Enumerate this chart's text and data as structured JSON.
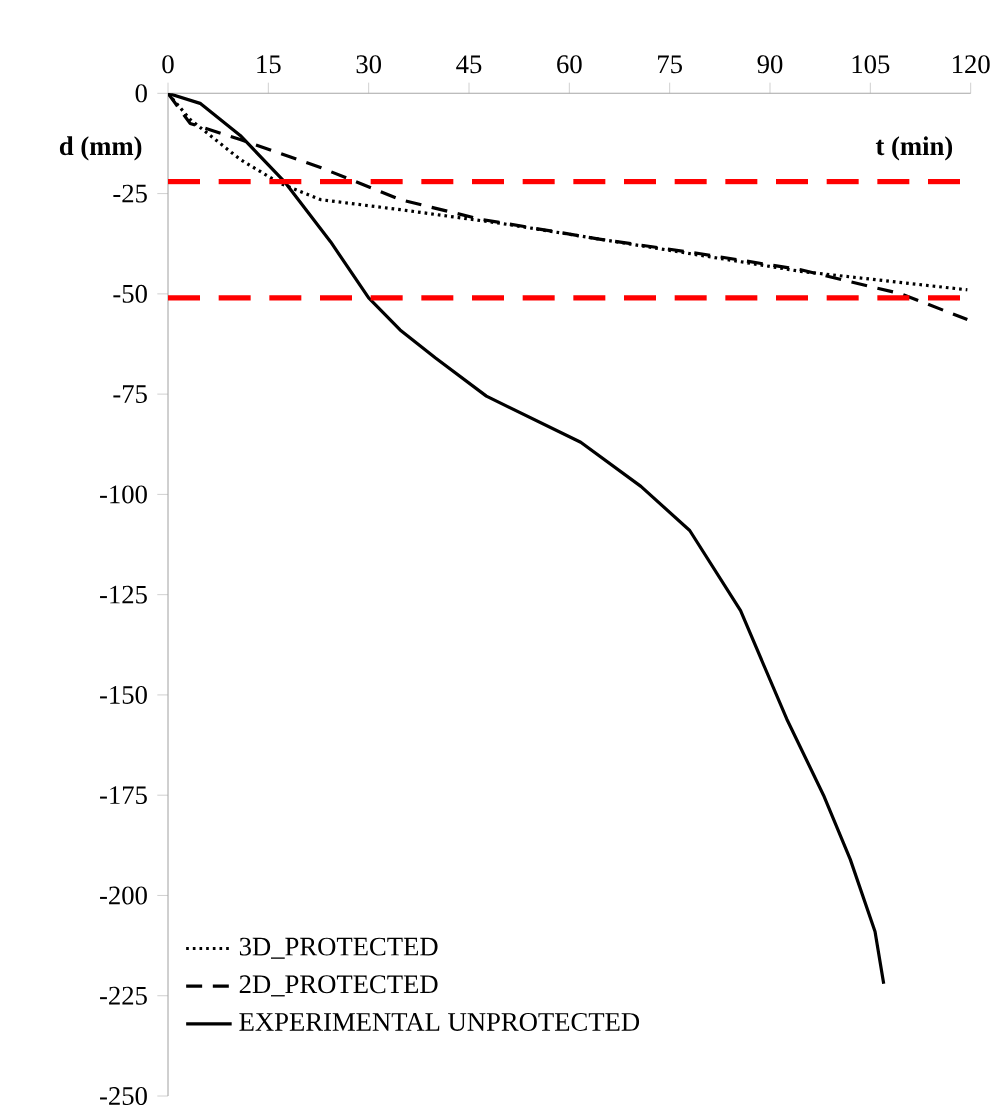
{
  "chart_data": {
    "type": "line",
    "xlabel": "t (min)",
    "ylabel": "d (mm)",
    "xlim": [
      0,
      120
    ],
    "xticks": [
      0,
      15,
      30,
      45,
      60,
      75,
      90,
      105,
      120
    ],
    "ylim": [
      -250,
      0
    ],
    "yticks": [
      -250,
      -225,
      -200,
      -175,
      -150,
      -125,
      -100,
      -75,
      -50,
      -25,
      0
    ],
    "grid": false,
    "legend": "bottom left",
    "series": [
      {
        "name": "3D_PROTECTED",
        "color": "#000000",
        "line_style": "dotted",
        "x": [
          0,
          3.3,
          10.8,
          16.8,
          22.8,
          34.7,
          49.7,
          64.7,
          94.6,
          119.5
        ],
        "values": [
          0,
          -6.5,
          -16.5,
          -22.5,
          -26.5,
          -29,
          -32.4,
          -36.4,
          -44.4,
          -49
        ]
      },
      {
        "name": "2D_PROTECTED",
        "color": "#000000",
        "line_style": "dashed",
        "x": [
          0,
          3.3,
          10.8,
          22.8,
          34.7,
          46.7,
          64.7,
          79.6,
          94.6,
          109.6,
          119.5
        ],
        "values": [
          0,
          -7.5,
          -11.5,
          -18.5,
          -26.5,
          -31.4,
          -36.4,
          -40,
          -44,
          -50,
          -56.4
        ]
      },
      {
        "name": "EXPERIMENTAL UNPROTECTED",
        "color": "#000000",
        "line_style": "solid",
        "x": [
          0,
          4.8,
          10.8,
          17.4,
          24.3,
          30,
          34.7,
          40,
          47.6,
          61.7,
          70.7,
          78,
          85.6,
          92.5,
          98,
          102,
          105.7,
          107
        ],
        "values": [
          0,
          -2.5,
          -10.5,
          -22,
          -37,
          -51,
          -59,
          -66,
          -75.5,
          -87,
          -98,
          -109,
          -129,
          -156,
          -175,
          -191,
          -209,
          -222
        ]
      }
    ],
    "ref_lines": [
      {
        "axis": "y",
        "value": -22,
        "color": "#ff0000",
        "line_style": "dashed"
      },
      {
        "axis": "y",
        "value": -51,
        "color": "#ff0000",
        "line_style": "dashed"
      }
    ]
  }
}
